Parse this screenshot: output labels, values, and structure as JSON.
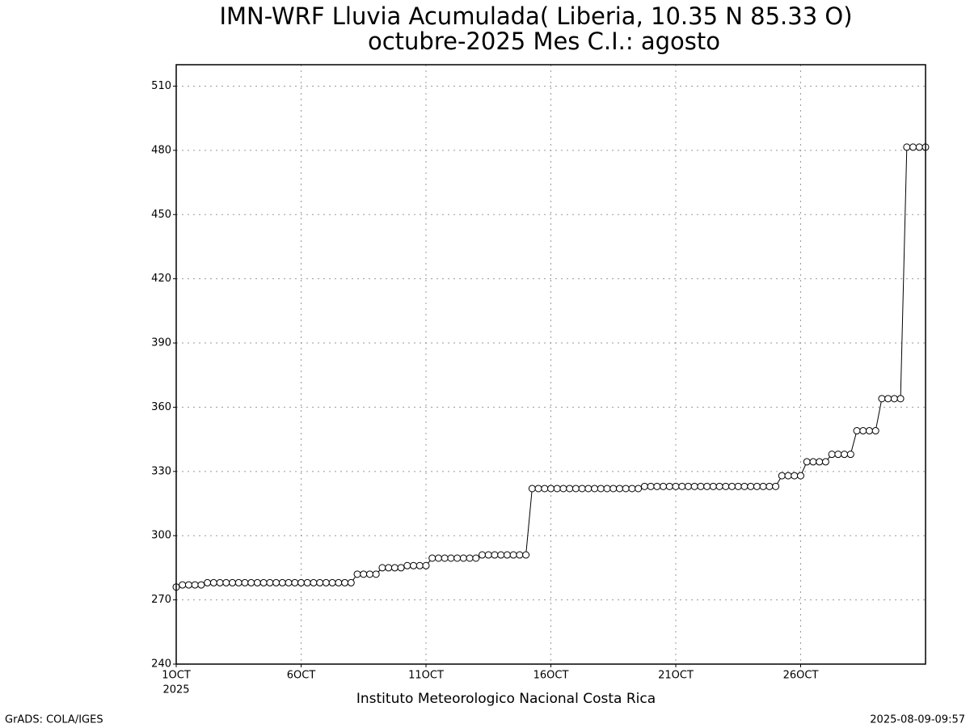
{
  "chart_data": {
    "type": "line",
    "title": "IMN-WRF  Lluvia Acumulada( Liberia, 10.35  N 85.33  O)",
    "subtitle": "octubre-2025 Mes C.I.: agosto",
    "xlabel": "Instituto Meteorologico Nacional Costa Rica",
    "x_year_label": "2025",
    "footer_left": "GrADS: COLA/IGES",
    "footer_right": "2025-08-09-09:57",
    "categories": [
      "1OCT",
      null,
      null,
      null,
      null,
      null,
      null,
      null,
      null,
      null,
      null,
      null,
      null,
      null,
      null,
      null,
      null,
      null,
      null,
      null,
      "6OCT",
      null,
      null,
      null,
      null,
      null,
      null,
      null,
      null,
      null,
      null,
      null,
      null,
      null,
      null,
      null,
      null,
      null,
      null,
      null,
      "11OCT",
      null,
      null,
      null,
      null,
      null,
      null,
      null,
      null,
      null,
      null,
      null,
      null,
      null,
      null,
      null,
      null,
      null,
      null,
      null,
      "16OCT",
      null,
      null,
      null,
      null,
      null,
      null,
      null,
      null,
      null,
      null,
      null,
      null,
      null,
      null,
      null,
      null,
      null,
      null,
      null,
      "21OCT",
      null,
      null,
      null,
      null,
      null,
      null,
      null,
      null,
      null,
      null,
      null,
      null,
      null,
      null,
      null,
      null,
      null,
      null,
      null,
      "26OCT",
      null,
      null,
      null,
      null,
      null,
      null,
      null,
      null,
      null,
      null,
      null,
      null,
      null,
      null,
      null,
      null,
      null,
      null,
      null,
      null
    ],
    "values": [
      276,
      277,
      277,
      277,
      277,
      278,
      278,
      278,
      278,
      278,
      278,
      278,
      278,
      278,
      278,
      278,
      278,
      278,
      278,
      278,
      278,
      278,
      278,
      278,
      278,
      278,
      278,
      278,
      278,
      282,
      282,
      282,
      282,
      285,
      285,
      285,
      285,
      286,
      286,
      286,
      286,
      289.5,
      289.5,
      289.5,
      289.5,
      289.5,
      289.5,
      289.5,
      289.5,
      291,
      291,
      291,
      291,
      291,
      291,
      291,
      291,
      322,
      322,
      322,
      322,
      322,
      322,
      322,
      322,
      322,
      322,
      322,
      322,
      322,
      322,
      322,
      322,
      322,
      322,
      323,
      323,
      323,
      323,
      323,
      323,
      323,
      323,
      323,
      323,
      323,
      323,
      323,
      323,
      323,
      323,
      323,
      323,
      323,
      323,
      323,
      323,
      328,
      328,
      328,
      328,
      334.5,
      334.5,
      334.5,
      334.5,
      338,
      338,
      338,
      338,
      349,
      349,
      349,
      349,
      364,
      364,
      364,
      364,
      481.5,
      481.5,
      481.5,
      481.5
    ],
    "color": "#000000",
    "marker_fill": "#ffffff",
    "ylim": [
      240,
      520
    ],
    "yticks": [
      240,
      270,
      300,
      330,
      360,
      390,
      420,
      450,
      480,
      510
    ],
    "grid": true
  }
}
